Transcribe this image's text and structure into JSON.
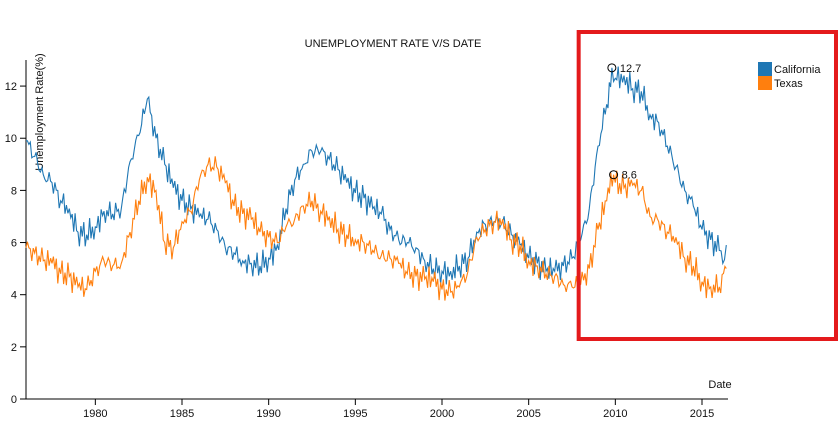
{
  "chart_data": {
    "type": "line",
    "title": "UNEMPLOYMENT RATE V/S DATE",
    "xlabel": "Date",
    "ylabel": "Unemployment Rate(%)",
    "xlim": [
      1976,
      2016.5
    ],
    "ylim": [
      0,
      13
    ],
    "xticks": [
      1980,
      1985,
      1990,
      1995,
      2000,
      2005,
      2010,
      2015
    ],
    "yticks": [
      0,
      2,
      4,
      6,
      8,
      10,
      12
    ],
    "legend": "top-right",
    "series": [
      {
        "name": "California",
        "color": "#1f77b4",
        "points": [
          [
            1976.0,
            9.9
          ],
          [
            1976.5,
            9.3
          ],
          [
            1977.0,
            8.6
          ],
          [
            1977.5,
            8.3
          ],
          [
            1978.0,
            7.6
          ],
          [
            1978.5,
            7.3
          ],
          [
            1979.0,
            6.4
          ],
          [
            1979.5,
            6.3
          ],
          [
            1980.0,
            6.6
          ],
          [
            1980.5,
            7.2
          ],
          [
            1981.0,
            7.1
          ],
          [
            1981.5,
            7.3
          ],
          [
            1982.0,
            9.1
          ],
          [
            1982.5,
            10.1
          ],
          [
            1983.0,
            11.5
          ],
          [
            1983.5,
            10.0
          ],
          [
            1984.0,
            9.0
          ],
          [
            1984.5,
            8.1
          ],
          [
            1985.0,
            7.6
          ],
          [
            1985.5,
            7.3
          ],
          [
            1986.0,
            7.0
          ],
          [
            1986.5,
            6.9
          ],
          [
            1987.0,
            6.5
          ],
          [
            1987.5,
            5.8
          ],
          [
            1988.0,
            5.6
          ],
          [
            1988.5,
            5.3
          ],
          [
            1989.0,
            5.2
          ],
          [
            1989.5,
            5.1
          ],
          [
            1990.0,
            5.4
          ],
          [
            1990.5,
            5.9
          ],
          [
            1991.0,
            7.3
          ],
          [
            1991.5,
            8.4
          ],
          [
            1992.0,
            9.0
          ],
          [
            1992.5,
            9.5
          ],
          [
            1993.0,
            9.5
          ],
          [
            1993.5,
            9.2
          ],
          [
            1994.0,
            8.8
          ],
          [
            1994.5,
            8.3
          ],
          [
            1995.0,
            7.9
          ],
          [
            1995.5,
            7.7
          ],
          [
            1996.0,
            7.3
          ],
          [
            1996.5,
            7.1
          ],
          [
            1997.0,
            6.5
          ],
          [
            1997.5,
            6.1
          ],
          [
            1998.0,
            6.0
          ],
          [
            1998.5,
            5.8
          ],
          [
            1999.0,
            5.3
          ],
          [
            1999.5,
            5.0
          ],
          [
            2000.0,
            4.9
          ],
          [
            2000.5,
            4.9
          ],
          [
            2001.0,
            5.1
          ],
          [
            2001.5,
            5.4
          ],
          [
            2002.0,
            6.4
          ],
          [
            2002.5,
            6.7
          ],
          [
            2003.0,
            6.8
          ],
          [
            2003.5,
            6.8
          ],
          [
            2004.0,
            6.3
          ],
          [
            2004.5,
            5.9
          ],
          [
            2005.0,
            5.4
          ],
          [
            2005.5,
            5.2
          ],
          [
            2006.0,
            4.9
          ],
          [
            2006.5,
            4.9
          ],
          [
            2007.0,
            5.1
          ],
          [
            2007.5,
            5.4
          ],
          [
            2008.0,
            6.1
          ],
          [
            2008.5,
            7.3
          ],
          [
            2009.0,
            9.7
          ],
          [
            2009.5,
            11.3
          ],
          [
            2009.8,
            12.7
          ],
          [
            2010.0,
            12.3
          ],
          [
            2010.5,
            12.4
          ],
          [
            2011.0,
            11.9
          ],
          [
            2011.5,
            11.8
          ],
          [
            2012.0,
            10.9
          ],
          [
            2012.5,
            10.6
          ],
          [
            2013.0,
            9.7
          ],
          [
            2013.5,
            8.9
          ],
          [
            2014.0,
            8.0
          ],
          [
            2014.5,
            7.4
          ],
          [
            2015.0,
            6.5
          ],
          [
            2015.5,
            6.1
          ],
          [
            2016.0,
            5.7
          ],
          [
            2016.2,
            5.2
          ],
          [
            2016.4,
            5.9
          ]
        ]
      },
      {
        "name": "Texas",
        "color": "#ff7f0e",
        "points": [
          [
            1976.0,
            5.8
          ],
          [
            1976.5,
            5.6
          ],
          [
            1977.0,
            5.3
          ],
          [
            1977.5,
            5.2
          ],
          [
            1978.0,
            4.8
          ],
          [
            1978.5,
            4.7
          ],
          [
            1979.0,
            4.3
          ],
          [
            1979.5,
            4.2
          ],
          [
            1980.0,
            4.9
          ],
          [
            1980.5,
            5.3
          ],
          [
            1981.0,
            5.1
          ],
          [
            1981.5,
            5.2
          ],
          [
            1982.0,
            6.4
          ],
          [
            1982.5,
            7.6
          ],
          [
            1983.0,
            8.5
          ],
          [
            1983.5,
            8.0
          ],
          [
            1984.0,
            6.0
          ],
          [
            1984.5,
            5.8
          ],
          [
            1985.0,
            6.8
          ],
          [
            1985.5,
            7.2
          ],
          [
            1986.0,
            8.4
          ],
          [
            1986.5,
            9.0
          ],
          [
            1987.0,
            8.9
          ],
          [
            1987.5,
            8.3
          ],
          [
            1988.0,
            7.4
          ],
          [
            1988.5,
            7.1
          ],
          [
            1989.0,
            6.9
          ],
          [
            1989.5,
            6.4
          ],
          [
            1990.0,
            6.2
          ],
          [
            1990.5,
            6.0
          ],
          [
            1991.0,
            6.6
          ],
          [
            1991.5,
            6.9
          ],
          [
            1992.0,
            7.4
          ],
          [
            1992.5,
            7.6
          ],
          [
            1993.0,
            7.2
          ],
          [
            1993.5,
            7.0
          ],
          [
            1994.0,
            6.5
          ],
          [
            1994.5,
            6.3
          ],
          [
            1995.0,
            6.1
          ],
          [
            1995.5,
            6.0
          ],
          [
            1996.0,
            5.7
          ],
          [
            1996.5,
            5.5
          ],
          [
            1997.0,
            5.4
          ],
          [
            1997.5,
            5.2
          ],
          [
            1998.0,
            4.8
          ],
          [
            1998.5,
            4.7
          ],
          [
            1999.0,
            4.6
          ],
          [
            1999.5,
            4.5
          ],
          [
            2000.0,
            4.2
          ],
          [
            2000.5,
            4.1
          ],
          [
            2001.0,
            4.3
          ],
          [
            2001.5,
            4.9
          ],
          [
            2002.0,
            6.2
          ],
          [
            2002.5,
            6.5
          ],
          [
            2003.0,
            6.8
          ],
          [
            2003.5,
            6.9
          ],
          [
            2004.0,
            6.1
          ],
          [
            2004.5,
            5.9
          ],
          [
            2005.0,
            5.3
          ],
          [
            2005.5,
            5.1
          ],
          [
            2006.0,
            4.8
          ],
          [
            2006.5,
            4.7
          ],
          [
            2007.0,
            4.4
          ],
          [
            2007.5,
            4.3
          ],
          [
            2008.0,
            4.4
          ],
          [
            2008.5,
            5.0
          ],
          [
            2009.0,
            6.5
          ],
          [
            2009.5,
            7.6
          ],
          [
            2009.9,
            8.6
          ],
          [
            2010.0,
            8.3
          ],
          [
            2010.5,
            8.1
          ],
          [
            2011.0,
            8.2
          ],
          [
            2011.5,
            8.0
          ],
          [
            2012.0,
            7.0
          ],
          [
            2012.5,
            6.8
          ],
          [
            2013.0,
            6.4
          ],
          [
            2013.5,
            6.2
          ],
          [
            2014.0,
            5.4
          ],
          [
            2014.5,
            5.1
          ],
          [
            2015.0,
            4.5
          ],
          [
            2015.5,
            4.3
          ],
          [
            2016.0,
            4.3
          ],
          [
            2016.4,
            5.0
          ]
        ]
      }
    ],
    "annotations": [
      {
        "series": "California",
        "x": 2009.8,
        "y": 12.7,
        "label": "12.7"
      },
      {
        "series": "Texas",
        "x": 2009.9,
        "y": 8.6,
        "label": "8.6"
      }
    ],
    "highlight_box": {
      "x_from": 2008.0,
      "x_to": 2016.5,
      "color": "#e41a1c"
    }
  }
}
